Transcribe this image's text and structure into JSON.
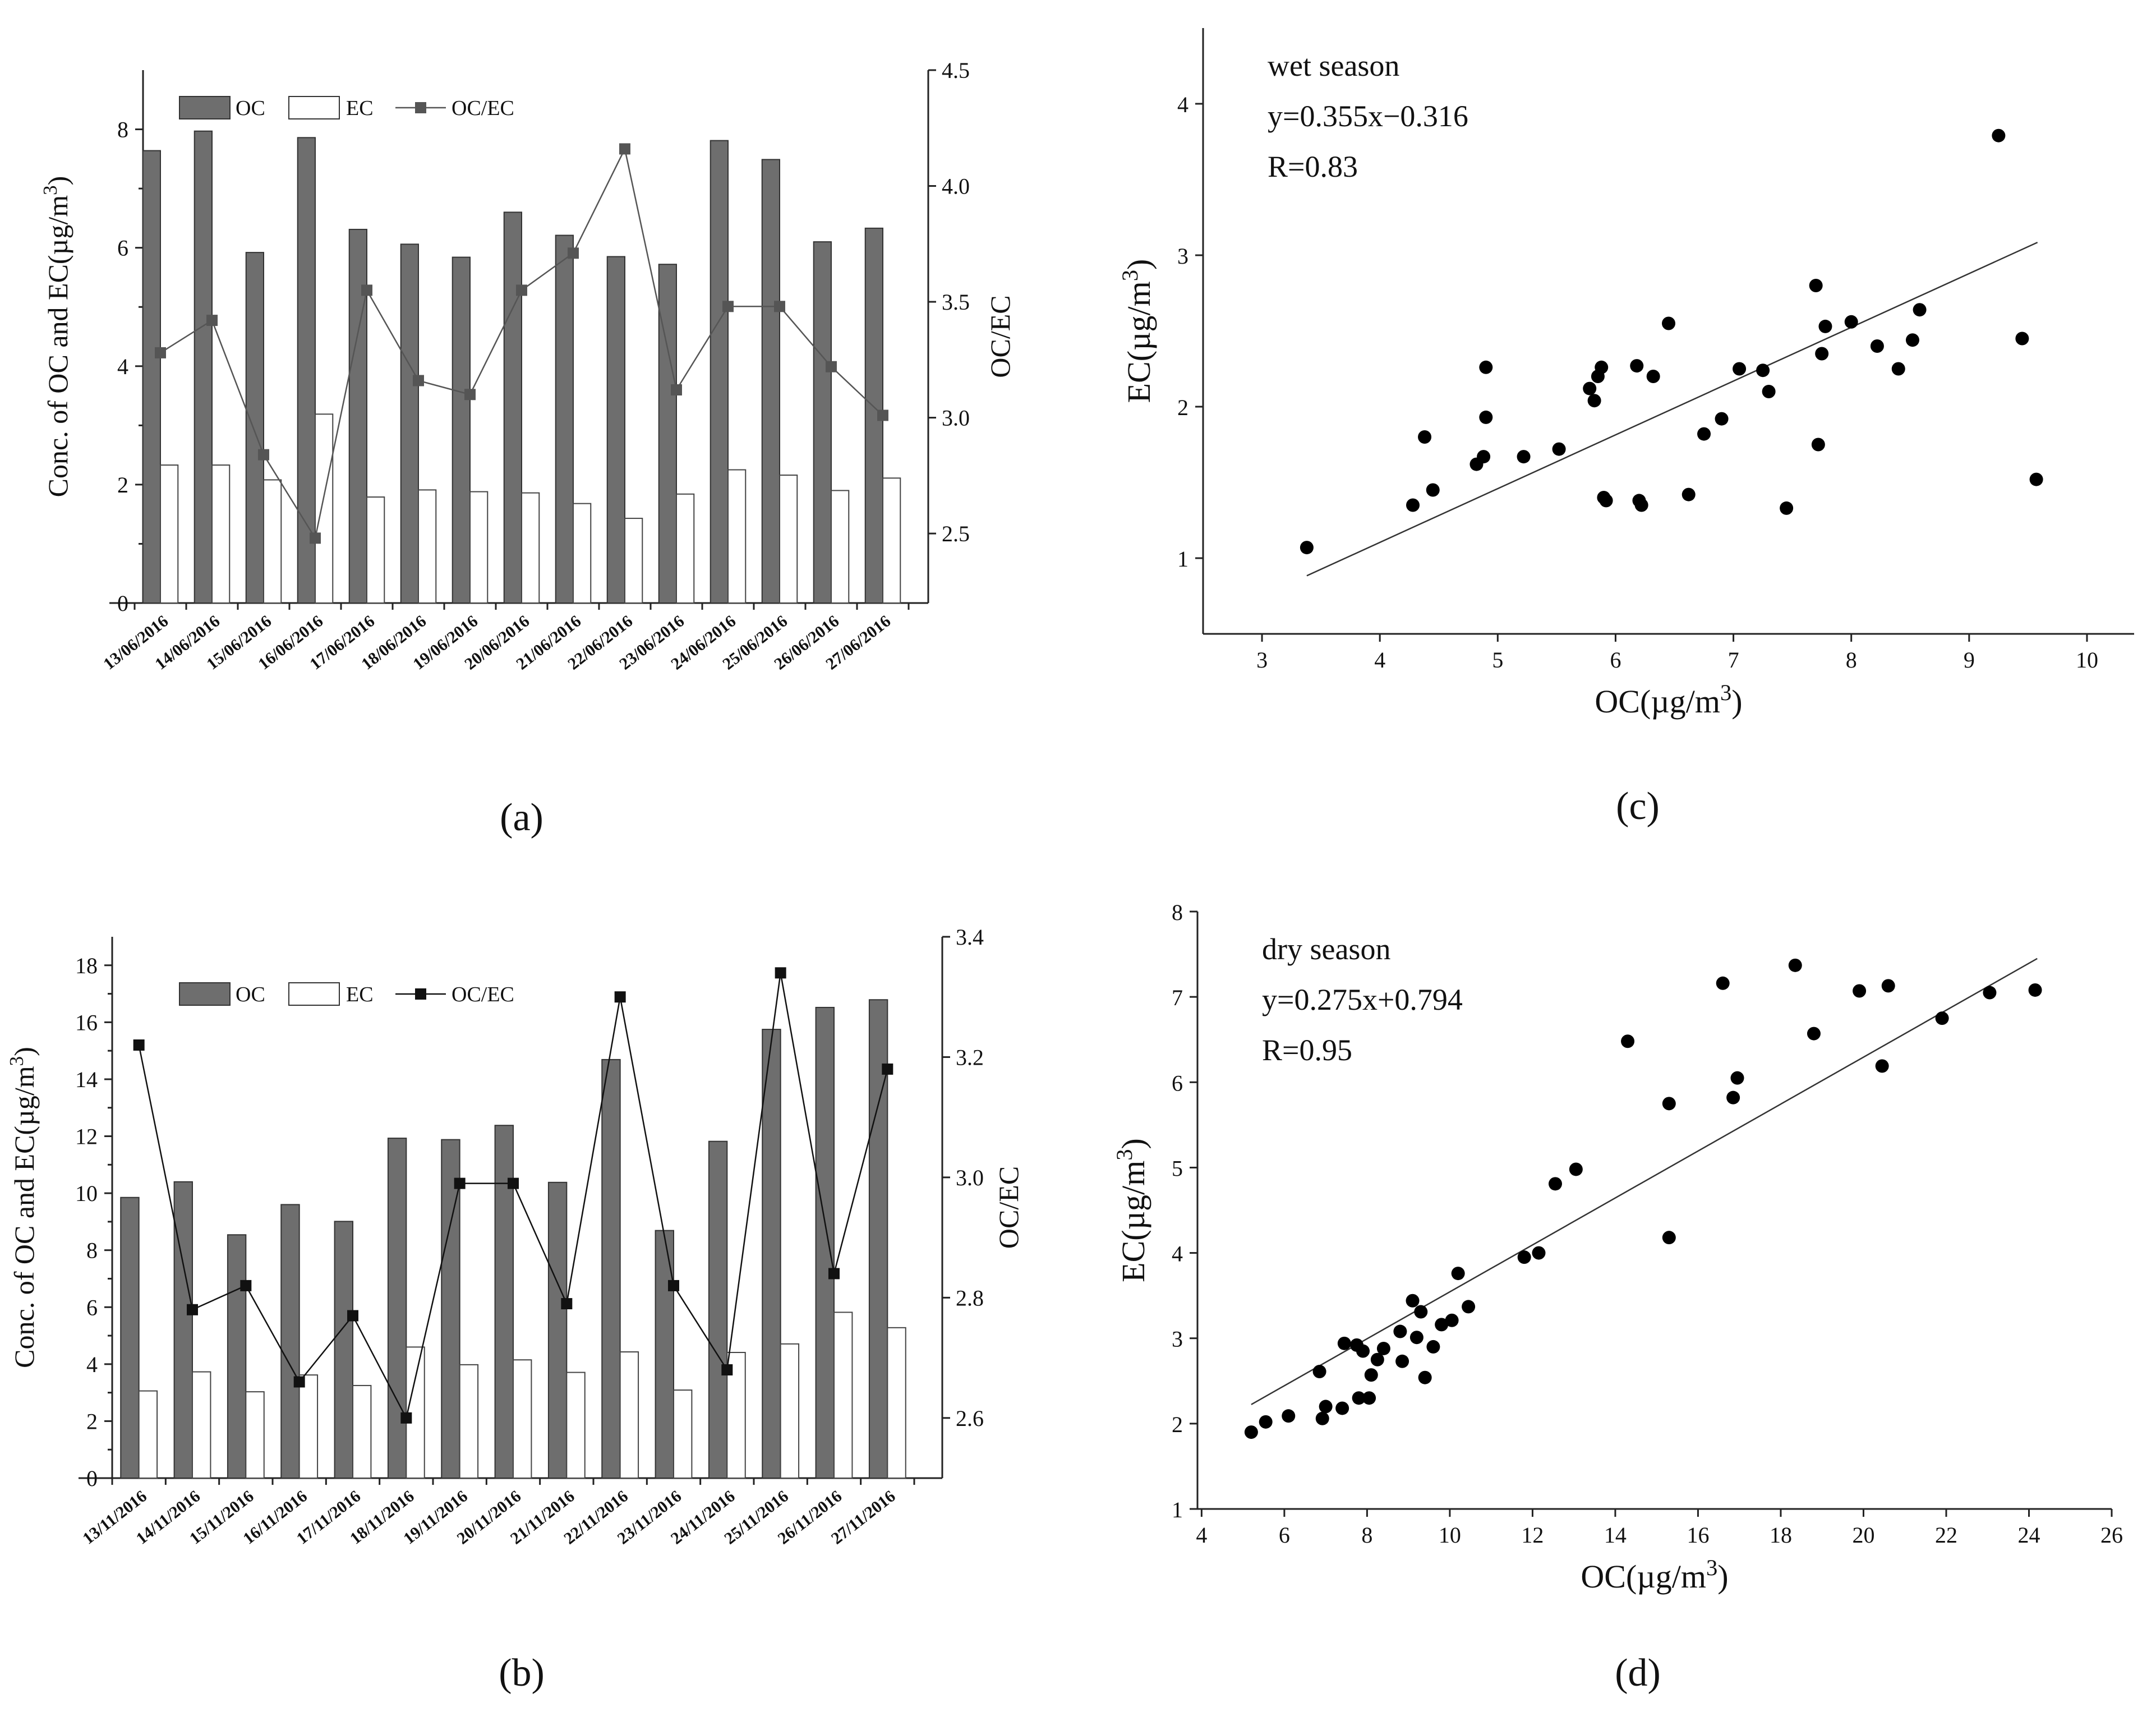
{
  "figure": {
    "panel_labels": {
      "a": "(a)",
      "b": "(b)",
      "c": "(c)",
      "d": "(d)"
    }
  },
  "chart_data": [
    {
      "id": "a",
      "type": "bar",
      "title": "",
      "ylabel_html": "Conc. of OC and EC(µg/m<sup>3</sup>)",
      "ylabel": "Conc. of OC and EC(µg/m",
      "ylabel_sup": "3",
      "ylabel_end": ")",
      "y2label": "OC/EC",
      "xlabel": "",
      "categories": [
        "13/06/2016",
        "14/06/2016",
        "15/06/2016",
        "16/06/2016",
        "17/06/2016",
        "18/06/2016",
        "19/06/2016",
        "20/06/2016",
        "21/06/2016",
        "22/06/2016",
        "23/06/2016",
        "24/06/2016",
        "25/06/2016",
        "26/06/2016",
        "27/06/2016"
      ],
      "series": [
        {
          "name": "OC",
          "kind": "bar",
          "color": "#6e6e6e",
          "values": [
            7.64,
            7.97,
            5.92,
            7.86,
            6.31,
            6.06,
            5.84,
            6.6,
            6.21,
            5.85,
            5.72,
            7.81,
            7.49,
            6.1,
            6.33
          ]
        },
        {
          "name": "EC",
          "kind": "bar",
          "color": "#ffffff",
          "values": [
            2.33,
            2.33,
            2.08,
            3.19,
            1.79,
            1.91,
            1.88,
            1.86,
            1.68,
            1.43,
            1.84,
            2.25,
            2.16,
            1.9,
            2.11
          ]
        },
        {
          "name": "OC/EC",
          "kind": "line",
          "axis": "right",
          "color": "#555555",
          "values": [
            3.28,
            3.42,
            2.84,
            2.48,
            3.55,
            3.16,
            3.1,
            3.55,
            3.71,
            4.16,
            3.12,
            3.48,
            3.48,
            3.22,
            3.01
          ]
        }
      ],
      "ylim": [
        0,
        9
      ],
      "yticks": [
        0,
        2,
        4,
        6,
        8
      ],
      "y2lim": [
        2.2,
        4.5
      ],
      "y2ticks": [
        2.5,
        3.0,
        3.5,
        4.0,
        4.5
      ],
      "y2ticklabels": [
        "2.5",
        "3.0",
        "3.5",
        "4.0",
        "4.5"
      ],
      "legend": [
        "OC",
        "EC",
        "OC/EC"
      ]
    },
    {
      "id": "b",
      "type": "bar",
      "title": "",
      "ylabel": "Conc. of OC and EC(µg/m",
      "ylabel_sup": "3",
      "ylabel_end": ")",
      "y2label": "OC/EC",
      "xlabel": "",
      "categories": [
        "13/11/2016",
        "14/11/2016",
        "15/11/2016",
        "16/11/2016",
        "17/11/2016",
        "18/11/2016",
        "19/11/2016",
        "20/11/2016",
        "21/11/2016",
        "22/11/2016",
        "23/11/2016",
        "24/11/2016",
        "25/11/2016",
        "26/11/2016",
        "27/11/2016"
      ],
      "series": [
        {
          "name": "OC",
          "kind": "bar",
          "color": "#6e6e6e",
          "values": [
            9.85,
            10.4,
            8.54,
            9.6,
            9.01,
            11.93,
            11.88,
            12.38,
            10.38,
            14.69,
            8.69,
            11.82,
            15.75,
            16.52,
            16.79
          ]
        },
        {
          "name": "EC",
          "kind": "bar",
          "color": "#ffffff",
          "values": [
            3.06,
            3.73,
            3.03,
            3.62,
            3.25,
            4.6,
            3.98,
            4.15,
            3.71,
            4.43,
            3.09,
            4.41,
            4.71,
            5.82,
            5.28
          ]
        },
        {
          "name": "OC/EC",
          "kind": "line",
          "axis": "right",
          "color": "#111111",
          "values": [
            3.22,
            2.78,
            2.82,
            2.66,
            2.77,
            2.6,
            2.99,
            2.99,
            2.79,
            3.3,
            2.82,
            2.68,
            3.34,
            2.84,
            3.18
          ]
        }
      ],
      "ylim": [
        0,
        19
      ],
      "yticks": [
        0,
        2,
        4,
        6,
        8,
        10,
        12,
        14,
        16,
        18
      ],
      "y2lim": [
        2.5,
        3.4
      ],
      "y2ticks": [
        2.6,
        2.8,
        3.0,
        3.2,
        3.4
      ],
      "y2ticklabels": [
        "2.6",
        "2.8",
        "3.0",
        "3.2",
        "3.4"
      ],
      "legend": [
        "OC",
        "EC",
        "OC/EC"
      ]
    },
    {
      "id": "c",
      "type": "scatter",
      "title": "",
      "annotations": [
        "wet season",
        "y=0.355x−0.316",
        "R=0.83"
      ],
      "xlabel": "OC(µg/m",
      "xlabel_sup": "3",
      "xlabel_end": ")",
      "ylabel": "EC(µg/m",
      "ylabel_sup": "3",
      "ylabel_end": ")",
      "xlim": [
        2.5,
        10.4
      ],
      "ylim": [
        0.5,
        4.5
      ],
      "xticks": [
        3,
        4,
        5,
        6,
        7,
        8,
        9,
        10
      ],
      "yticks": [
        1,
        2,
        3,
        4
      ],
      "fit": {
        "slope": 0.355,
        "intercept": -0.316,
        "x_range": [
          3.38,
          9.58
        ]
      },
      "points": [
        [
          3.38,
          1.07
        ],
        [
          4.28,
          1.35
        ],
        [
          4.38,
          1.8
        ],
        [
          4.45,
          1.45
        ],
        [
          4.82,
          1.62
        ],
        [
          4.88,
          1.67
        ],
        [
          4.9,
          1.93
        ],
        [
          4.9,
          2.26
        ],
        [
          5.22,
          1.67
        ],
        [
          5.52,
          1.72
        ],
        [
          5.78,
          2.12
        ],
        [
          5.82,
          2.04
        ],
        [
          5.85,
          2.2
        ],
        [
          5.88,
          2.26
        ],
        [
          5.9,
          1.4
        ],
        [
          5.92,
          1.38
        ],
        [
          6.18,
          2.27
        ],
        [
          6.2,
          1.38
        ],
        [
          6.22,
          1.35
        ],
        [
          6.32,
          2.2
        ],
        [
          6.45,
          2.55
        ],
        [
          6.62,
          1.42
        ],
        [
          6.75,
          1.82
        ],
        [
          6.9,
          1.92
        ],
        [
          7.05,
          2.25
        ],
        [
          7.25,
          2.24
        ],
        [
          7.3,
          2.1
        ],
        [
          7.45,
          1.33
        ],
        [
          7.7,
          2.8
        ],
        [
          7.72,
          1.75
        ],
        [
          7.75,
          2.35
        ],
        [
          7.78,
          2.53
        ],
        [
          8.0,
          2.56
        ],
        [
          8.22,
          2.4
        ],
        [
          8.4,
          2.25
        ],
        [
          8.52,
          2.44
        ],
        [
          8.58,
          2.64
        ],
        [
          9.25,
          3.79
        ],
        [
          9.45,
          2.45
        ],
        [
          9.57,
          1.52
        ]
      ]
    },
    {
      "id": "d",
      "type": "scatter",
      "title": "",
      "annotations": [
        "dry season",
        "y=0.275x+0.794",
        "R=0.95"
      ],
      "xlabel": "OC(µg/m",
      "xlabel_sup": "3",
      "xlabel_end": ")",
      "ylabel": "EC(µg/m",
      "ylabel_sup": "3",
      "ylabel_end": ")",
      "xlim": [
        3.9,
        26.0
      ],
      "ylim": [
        1,
        8
      ],
      "xticks": [
        4,
        6,
        8,
        10,
        12,
        14,
        16,
        18,
        20,
        22,
        24,
        26
      ],
      "yticks": [
        1,
        2,
        3,
        4,
        5,
        6,
        7,
        8
      ],
      "fit": {
        "slope": 0.275,
        "intercept": 0.794,
        "x_range": [
          5.2,
          24.2
        ]
      },
      "points": [
        [
          5.2,
          1.9
        ],
        [
          5.55,
          2.02
        ],
        [
          6.1,
          2.09
        ],
        [
          6.85,
          2.61
        ],
        [
          6.92,
          2.06
        ],
        [
          7.0,
          2.2
        ],
        [
          7.4,
          2.18
        ],
        [
          7.45,
          2.94
        ],
        [
          7.75,
          2.92
        ],
        [
          7.8,
          2.3
        ],
        [
          7.9,
          2.85
        ],
        [
          8.05,
          2.3
        ],
        [
          8.1,
          2.57
        ],
        [
          8.25,
          2.75
        ],
        [
          8.4,
          2.88
        ],
        [
          8.8,
          3.08
        ],
        [
          8.85,
          2.73
        ],
        [
          9.1,
          3.44
        ],
        [
          9.2,
          3.01
        ],
        [
          9.3,
          3.31
        ],
        [
          9.4,
          2.54
        ],
        [
          9.6,
          2.9
        ],
        [
          9.8,
          3.16
        ],
        [
          10.05,
          3.21
        ],
        [
          10.2,
          3.76
        ],
        [
          10.45,
          3.37
        ],
        [
          11.8,
          3.95
        ],
        [
          12.15,
          4.0
        ],
        [
          12.55,
          4.81
        ],
        [
          13.05,
          4.98
        ],
        [
          14.3,
          6.48
        ],
        [
          15.3,
          5.75
        ],
        [
          15.3,
          4.18
        ],
        [
          16.6,
          7.16
        ],
        [
          16.85,
          5.82
        ],
        [
          16.95,
          6.05
        ],
        [
          18.35,
          7.37
        ],
        [
          18.8,
          6.57
        ],
        [
          19.9,
          7.07
        ],
        [
          20.45,
          6.19
        ],
        [
          20.6,
          7.13
        ],
        [
          21.9,
          6.75
        ],
        [
          23.05,
          7.05
        ],
        [
          24.15,
          7.08
        ]
      ]
    }
  ]
}
